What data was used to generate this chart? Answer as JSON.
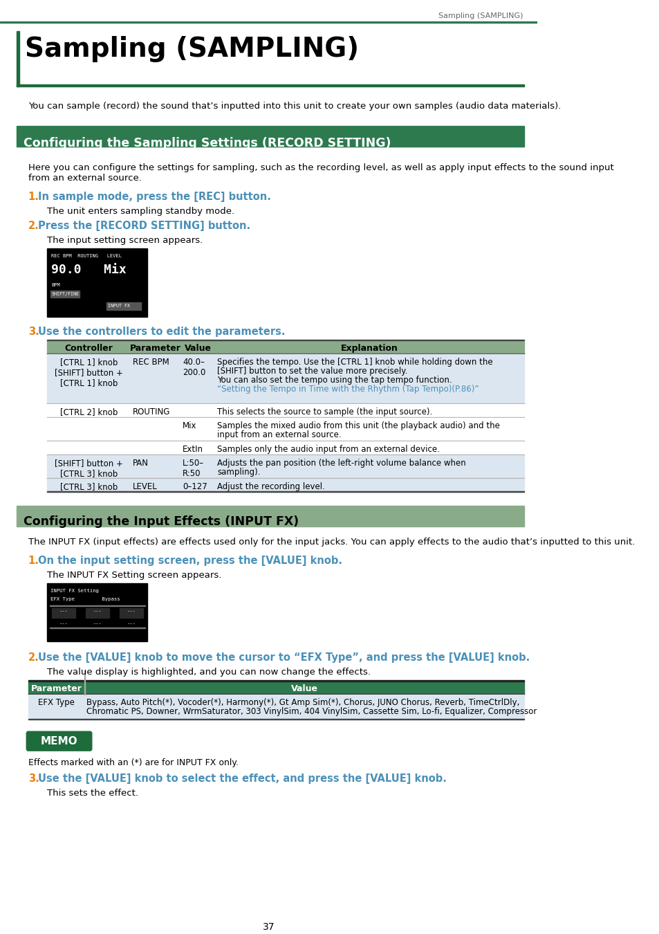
{
  "page_header": "Sampling (SAMPLING)",
  "title": "Sampling (SAMPLING)",
  "intro_text": "You can sample (record) the sound that’s inputted into this unit to create your own samples (audio data materials).",
  "section1_title": "Configuring the Sampling Settings (RECORD SETTING)",
  "section1_color": "#2d7a4f",
  "section2_title": "Configuring the Input Effects (INPUT FX)",
  "section2_color": "#8aab8a",
  "section1_intro": "Here you can configure the settings for sampling, such as the recording level, as well as apply input effects to the sound input\nfrom an external source.",
  "step1_num": "1.",
  "step1_text": "In sample mode, press the [REC] button.",
  "step1_desc": "The unit enters sampling standby mode.",
  "step2_num": "2.",
  "step2_text": "Press the [RECORD SETTING] button.",
  "step2_desc": "The input setting screen appears.",
  "step3_num": "3.",
  "step3_text": "Use the controllers to edit the parameters.",
  "orange_color": "#e8820c",
  "blue_color": "#4a90b8",
  "table1_headers": [
    "Controller",
    "Parameter",
    "Value",
    "Explanation"
  ],
  "table1_header_bg": "#8aab8a",
  "table1_row_bg1": "#dce6f0",
  "table1_row_bg2": "#ffffff",
  "section2_intro": "The INPUT FX (input effects) are effects used only for the input jacks. You can apply effects to the audio that’s inputted to this unit.",
  "step2_1_num": "1.",
  "step2_1_text": "On the input setting screen, press the [VALUE] knob.",
  "step2_1_desc": "The INPUT FX Setting screen appears.",
  "step2_2_num": "2.",
  "step2_2_text": "Use the [VALUE] knob to move the cursor to “EFX Type”, and press the [VALUE] knob.",
  "step2_2_desc": "The value display is highlighted, and you can now change the effects.",
  "table2_headers": [
    "Parameter",
    "Value"
  ],
  "table2_header_bg": "#2d7a4f",
  "table2_param": "EFX Type",
  "table2_value_line1": "Bypass, Auto Pitch(*), Vocoder(*), Harmony(*), Gt Amp Sim(*), Chorus, JUNO Chorus, Reverb, TimeCtrlDly,",
  "table2_value_line2": "Chromatic PS, Downer, WrmSaturator, 303 VinylSim, 404 VinylSim, Cassette Sim, Lo-fi, Equalizer, Compressor",
  "memo_text": "Effects marked with an (*) are for INPUT FX only.",
  "step2_3_num": "3.",
  "step2_3_text": "Use the [VALUE] knob to select the effect, and press the [VALUE] knob.",
  "step2_3_desc": "This sets the effect.",
  "page_num": "37",
  "green_dark": "#1e6b3c",
  "green_mid": "#8aab8a"
}
